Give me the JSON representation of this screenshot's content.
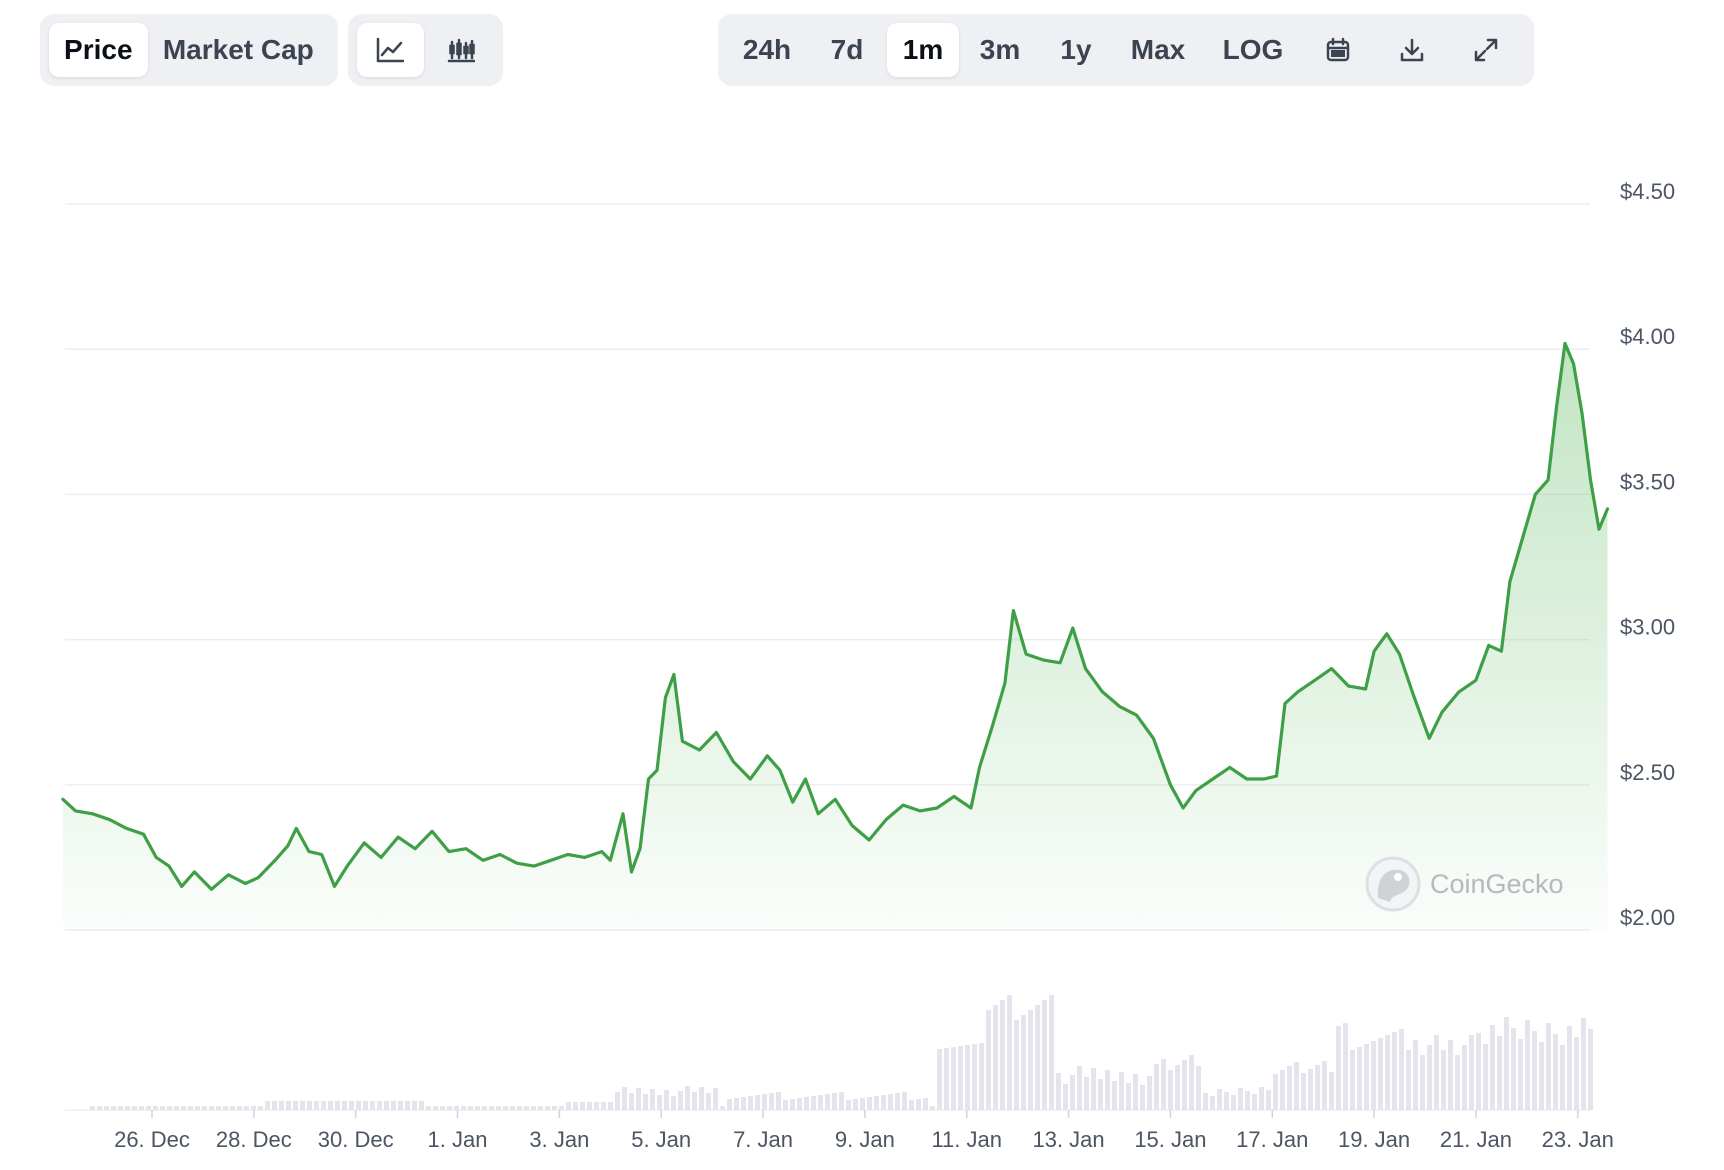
{
  "toolbar": {
    "metric_tabs": [
      {
        "label": "Price",
        "active": true
      },
      {
        "label": "Market Cap",
        "active": false
      }
    ],
    "chart_style_icons": [
      "line-chart-icon",
      "candlestick-chart-icon"
    ],
    "range_tabs": [
      {
        "label": "24h",
        "active": false
      },
      {
        "label": "7d",
        "active": false
      },
      {
        "label": "1m",
        "active": true
      },
      {
        "label": "3m",
        "active": false
      },
      {
        "label": "1y",
        "active": false
      },
      {
        "label": "Max",
        "active": false
      },
      {
        "label": "LOG",
        "active": false
      }
    ],
    "action_icons": [
      "calendar-icon",
      "download-icon",
      "fullscreen-icon"
    ]
  },
  "watermark": "CoinGecko",
  "colors": {
    "line": "#3f9f46",
    "fill": "#6cc06f",
    "grid": "#eceef1",
    "volume": "#e4e4ec"
  },
  "chart_data": {
    "type": "area",
    "xlabel": "",
    "ylabel": "",
    "ylim": [
      2.0,
      4.5
    ],
    "y_ticks": [
      "$2.00",
      "$2.50",
      "$3.00",
      "$3.50",
      "$4.00",
      "$4.50"
    ],
    "x_ticks": [
      "26. Dec",
      "28. Dec",
      "30. Dec",
      "1. Jan",
      "3. Jan",
      "5. Jan",
      "7. Jan",
      "9. Jan",
      "11. Jan",
      "13. Jan",
      "15. Jan",
      "17. Jan",
      "19. Jan",
      "21. Jan",
      "23. Jan"
    ],
    "grid": true,
    "legend": "none",
    "series": [
      {
        "values": [
          [
            "2024-12-24T06:00",
            2.45
          ],
          [
            "2024-12-24T12:00",
            2.41
          ],
          [
            "2024-12-24T20:00",
            2.4
          ],
          [
            "2024-12-25T04:00",
            2.38
          ],
          [
            "2024-12-25T12:00",
            2.35
          ],
          [
            "2024-12-25T20:00",
            2.33
          ],
          [
            "2024-12-26T02:00",
            2.25
          ],
          [
            "2024-12-26T08:00",
            2.22
          ],
          [
            "2024-12-26T14:00",
            2.15
          ],
          [
            "2024-12-26T20:00",
            2.2
          ],
          [
            "2024-12-27T04:00",
            2.14
          ],
          [
            "2024-12-27T12:00",
            2.19
          ],
          [
            "2024-12-27T20:00",
            2.16
          ],
          [
            "2024-12-28T02:00",
            2.18
          ],
          [
            "2024-12-28T10:00",
            2.24
          ],
          [
            "2024-12-28T16:00",
            2.29
          ],
          [
            "2024-12-28T20:00",
            2.35
          ],
          [
            "2024-12-29T02:00",
            2.27
          ],
          [
            "2024-12-29T08:00",
            2.26
          ],
          [
            "2024-12-29T14:00",
            2.15
          ],
          [
            "2024-12-29T20:00",
            2.22
          ],
          [
            "2024-12-30T04:00",
            2.3
          ],
          [
            "2024-12-30T12:00",
            2.25
          ],
          [
            "2024-12-30T20:00",
            2.32
          ],
          [
            "2024-12-31T04:00",
            2.28
          ],
          [
            "2024-12-31T12:00",
            2.34
          ],
          [
            "2024-12-31T20:00",
            2.27
          ],
          [
            "2025-01-01T04:00",
            2.28
          ],
          [
            "2025-01-01T12:00",
            2.24
          ],
          [
            "2025-01-01T20:00",
            2.26
          ],
          [
            "2025-01-02T04:00",
            2.23
          ],
          [
            "2025-01-02T12:00",
            2.22
          ],
          [
            "2025-01-02T20:00",
            2.24
          ],
          [
            "2025-01-03T04:00",
            2.26
          ],
          [
            "2025-01-03T12:00",
            2.25
          ],
          [
            "2025-01-03T20:00",
            2.27
          ],
          [
            "2025-01-04T00:00",
            2.24
          ],
          [
            "2025-01-04T06:00",
            2.4
          ],
          [
            "2025-01-04T10:00",
            2.2
          ],
          [
            "2025-01-04T14:00",
            2.28
          ],
          [
            "2025-01-04T18:00",
            2.52
          ],
          [
            "2025-01-04T22:00",
            2.55
          ],
          [
            "2025-01-05T02:00",
            2.8
          ],
          [
            "2025-01-05T06:00",
            2.88
          ],
          [
            "2025-01-05T10:00",
            2.65
          ],
          [
            "2025-01-05T18:00",
            2.62
          ],
          [
            "2025-01-06T02:00",
            2.68
          ],
          [
            "2025-01-06T10:00",
            2.58
          ],
          [
            "2025-01-06T18:00",
            2.52
          ],
          [
            "2025-01-07T02:00",
            2.6
          ],
          [
            "2025-01-07T08:00",
            2.55
          ],
          [
            "2025-01-07T14:00",
            2.44
          ],
          [
            "2025-01-07T20:00",
            2.52
          ],
          [
            "2025-01-08T02:00",
            2.4
          ],
          [
            "2025-01-08T10:00",
            2.45
          ],
          [
            "2025-01-08T18:00",
            2.36
          ],
          [
            "2025-01-09T02:00",
            2.31
          ],
          [
            "2025-01-09T10:00",
            2.38
          ],
          [
            "2025-01-09T18:00",
            2.43
          ],
          [
            "2025-01-10T02:00",
            2.41
          ],
          [
            "2025-01-10T10:00",
            2.42
          ],
          [
            "2025-01-10T18:00",
            2.46
          ],
          [
            "2025-01-11T02:00",
            2.42
          ],
          [
            "2025-01-11T06:00",
            2.56
          ],
          [
            "2025-01-11T12:00",
            2.7
          ],
          [
            "2025-01-11T18:00",
            2.85
          ],
          [
            "2025-01-11T22:00",
            3.1
          ],
          [
            "2025-01-12T04:00",
            2.95
          ],
          [
            "2025-01-12T12:00",
            2.93
          ],
          [
            "2025-01-12T20:00",
            2.92
          ],
          [
            "2025-01-13T02:00",
            3.04
          ],
          [
            "2025-01-13T08:00",
            2.9
          ],
          [
            "2025-01-13T16:00",
            2.82
          ],
          [
            "2025-01-14T00:00",
            2.77
          ],
          [
            "2025-01-14T08:00",
            2.74
          ],
          [
            "2025-01-14T16:00",
            2.66
          ],
          [
            "2025-01-15T00:00",
            2.5
          ],
          [
            "2025-01-15T06:00",
            2.42
          ],
          [
            "2025-01-15T12:00",
            2.48
          ],
          [
            "2025-01-15T20:00",
            2.52
          ],
          [
            "2025-01-16T04:00",
            2.56
          ],
          [
            "2025-01-16T12:00",
            2.52
          ],
          [
            "2025-01-16T20:00",
            2.52
          ],
          [
            "2025-01-17T02:00",
            2.53
          ],
          [
            "2025-01-17T06:00",
            2.78
          ],
          [
            "2025-01-17T12:00",
            2.82
          ],
          [
            "2025-01-17T20:00",
            2.86
          ],
          [
            "2025-01-18T04:00",
            2.9
          ],
          [
            "2025-01-18T12:00",
            2.84
          ],
          [
            "2025-01-18T20:00",
            2.83
          ],
          [
            "2025-01-19T00:00",
            2.96
          ],
          [
            "2025-01-19T06:00",
            3.02
          ],
          [
            "2025-01-19T12:00",
            2.95
          ],
          [
            "2025-01-19T18:00",
            2.82
          ],
          [
            "2025-01-20T02:00",
            2.66
          ],
          [
            "2025-01-20T08:00",
            2.75
          ],
          [
            "2025-01-20T16:00",
            2.82
          ],
          [
            "2025-01-21T00:00",
            2.86
          ],
          [
            "2025-01-21T06:00",
            2.98
          ],
          [
            "2025-01-21T12:00",
            2.96
          ],
          [
            "2025-01-21T16:00",
            3.2
          ],
          [
            "2025-01-21T22:00",
            3.35
          ],
          [
            "2025-01-22T04:00",
            3.5
          ],
          [
            "2025-01-22T10:00",
            3.55
          ],
          [
            "2025-01-22T14:00",
            3.8
          ],
          [
            "2025-01-22T18:00",
            4.02
          ],
          [
            "2025-01-22T22:00",
            3.95
          ],
          [
            "2025-01-23T02:00",
            3.78
          ],
          [
            "2025-01-23T06:00",
            3.55
          ],
          [
            "2025-01-23T10:00",
            3.38
          ],
          [
            "2025-01-23T14:00",
            3.45
          ]
        ]
      }
    ]
  }
}
